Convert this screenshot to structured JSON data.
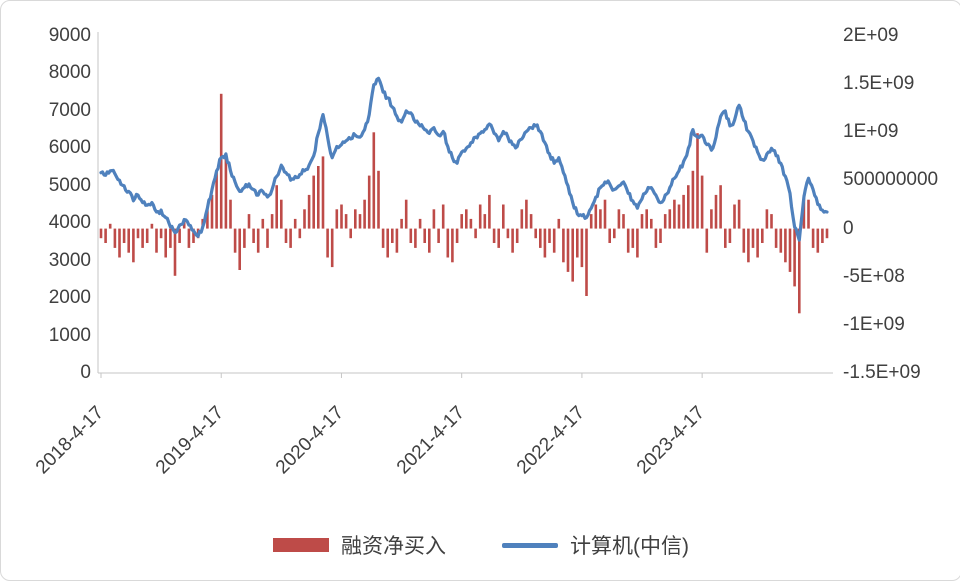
{
  "chart_data": {
    "type": "bar+line combo",
    "title": "",
    "legend_position": "bottom",
    "grid": false,
    "sampling": "biweekly estimate read from plot",
    "left_axis": {
      "min": 0,
      "max": 9000,
      "tick_step": 1000,
      "tick_labels": [
        "0",
        "1000",
        "2000",
        "3000",
        "4000",
        "5000",
        "6000",
        "7000",
        "8000",
        "9000"
      ]
    },
    "right_axis": {
      "min": -1.5,
      "max": 2,
      "unit": "1e9",
      "tick_step": 0.5,
      "tick_labels": [
        "-1.5E+09",
        "-1E+09",
        "-5E+08",
        "0",
        "500000000",
        "1E+09",
        "1.5E+09",
        "2E+09"
      ]
    },
    "x_ticks": [
      {
        "label": "2018-4-17",
        "index": 0
      },
      {
        "label": "2019-4-17",
        "index": 26
      },
      {
        "label": "2020-4-17",
        "index": 52
      },
      {
        "label": "2021-4-17",
        "index": 78
      },
      {
        "label": "2022-4-17",
        "index": 104
      },
      {
        "label": "2023-4-17",
        "index": 130
      }
    ],
    "series": [
      {
        "name": "融资净买入",
        "type": "bar",
        "axis": "right",
        "color": "#be4b48",
        "unit": "1e9",
        "values": [
          -0.1,
          -0.15,
          0.05,
          -0.2,
          -0.3,
          -0.15,
          -0.25,
          -0.35,
          -0.1,
          -0.2,
          -0.15,
          0.05,
          -0.25,
          -0.1,
          -0.3,
          -0.2,
          -0.49,
          -0.15,
          0.1,
          -0.2,
          -0.15,
          -0.1,
          0.1,
          0.2,
          0.35,
          0.6,
          1.4,
          0.75,
          0.3,
          -0.25,
          -0.43,
          -0.2,
          0.15,
          -0.15,
          -0.25,
          0.1,
          -0.2,
          0.15,
          0.45,
          0.3,
          -0.15,
          -0.2,
          0.1,
          -0.1,
          0.2,
          0.35,
          0.55,
          0.65,
          0.75,
          -0.3,
          -0.4,
          0.2,
          0.25,
          0.15,
          -0.1,
          0.2,
          0.15,
          0.3,
          0.55,
          1.0,
          0.6,
          -0.2,
          -0.3,
          -0.15,
          -0.25,
          0.1,
          0.3,
          -0.15,
          -0.2,
          0.1,
          -0.15,
          -0.25,
          0.2,
          -0.15,
          0.25,
          -0.3,
          -0.35,
          -0.15,
          0.15,
          0.2,
          0.1,
          -0.1,
          0.25,
          0.15,
          0.35,
          -0.15,
          -0.2,
          0.25,
          -0.1,
          -0.25,
          -0.15,
          0.2,
          0.3,
          0.15,
          -0.1,
          -0.2,
          -0.3,
          -0.15,
          -0.25,
          0.1,
          -0.35,
          -0.45,
          -0.55,
          -0.3,
          -0.4,
          -0.7,
          0.15,
          0.25,
          0.2,
          0.3,
          -0.15,
          -0.1,
          0.2,
          0.15,
          -0.25,
          -0.2,
          -0.3,
          0.15,
          0.2,
          0.1,
          -0.2,
          -0.15,
          0.15,
          0.2,
          0.3,
          0.25,
          0.35,
          0.45,
          0.6,
          0.99,
          0.55,
          -0.25,
          0.2,
          0.35,
          0.45,
          -0.2,
          -0.15,
          0.25,
          0.3,
          -0.25,
          -0.35,
          -0.2,
          -0.3,
          -0.15,
          0.2,
          0.15,
          -0.2,
          -0.25,
          -0.35,
          -0.45,
          -0.6,
          -0.88,
          0.35,
          0.3,
          -0.2,
          -0.25,
          -0.15,
          -0.1
        ]
      },
      {
        "name": "计算机(中信)",
        "type": "line",
        "axis": "left",
        "color": "#4f81bd",
        "values": [
          5350,
          5280,
          5400,
          5320,
          5150,
          5000,
          4850,
          4600,
          4750,
          4550,
          4480,
          4550,
          4300,
          4350,
          4150,
          3900,
          3750,
          3950,
          4100,
          3950,
          3800,
          3650,
          3900,
          4400,
          4900,
          5400,
          5750,
          5850,
          5400,
          5100,
          4850,
          4950,
          5050,
          4900,
          4750,
          4850,
          4700,
          4900,
          5250,
          5550,
          5350,
          5150,
          5250,
          5300,
          5400,
          5550,
          5800,
          6400,
          6900,
          6300,
          5750,
          6050,
          6100,
          6200,
          6250,
          6350,
          6300,
          6500,
          6900,
          7700,
          7870,
          7500,
          7350,
          7100,
          6850,
          6700,
          7000,
          6950,
          6700,
          6600,
          6500,
          6400,
          6550,
          6350,
          6450,
          6050,
          5750,
          5600,
          5900,
          6000,
          6150,
          6300,
          6400,
          6500,
          6650,
          6400,
          6200,
          6450,
          6300,
          6100,
          6050,
          6250,
          6450,
          6550,
          6600,
          6450,
          6150,
          5850,
          5600,
          5750,
          5350,
          5000,
          4550,
          4250,
          4200,
          4150,
          4400,
          4700,
          4950,
          5100,
          5050,
          4900,
          5000,
          5100,
          4800,
          4600,
          4400,
          4650,
          4850,
          4950,
          4750,
          4550,
          4750,
          4950,
          5200,
          5400,
          5650,
          6000,
          6500,
          6300,
          6350,
          6100,
          5950,
          6300,
          6850,
          7000,
          6600,
          6750,
          7150,
          6750,
          6450,
          6200,
          5900,
          5700,
          5850,
          6000,
          5800,
          5600,
          5250,
          4800,
          3900,
          3550,
          4700,
          5200,
          4900,
          4500,
          4350,
          4300
        ]
      }
    ]
  }
}
